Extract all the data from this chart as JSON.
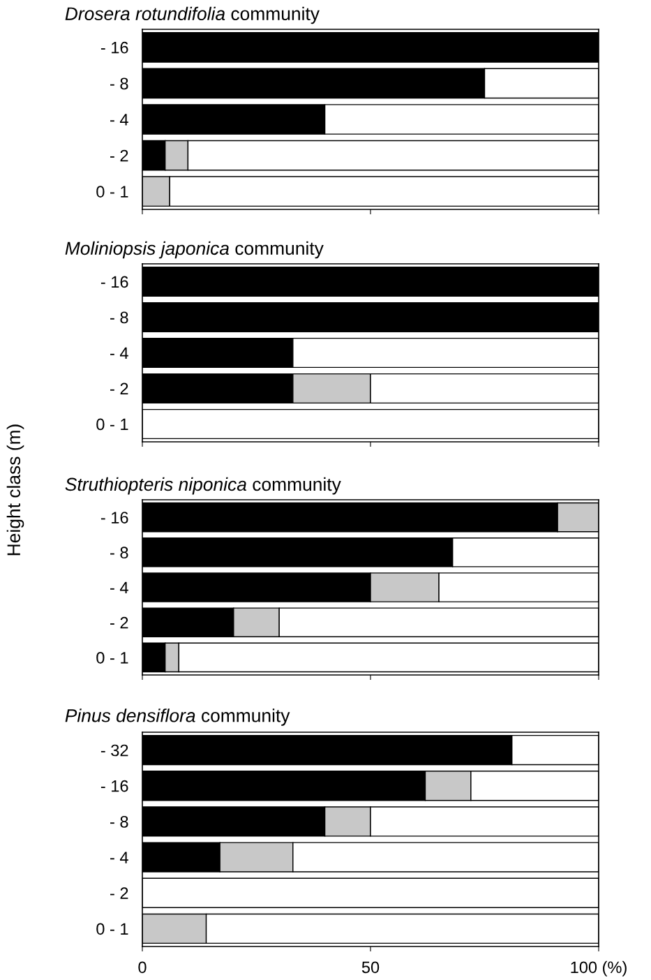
{
  "chart_data": [
    {
      "type": "bar",
      "orientation": "horizontal",
      "stacked": true,
      "title": "Drosera rotundifolia community",
      "categories": [
        "- 16",
        "- 8",
        "- 4",
        "- 2",
        "0 - 1"
      ],
      "series": [
        {
          "color": "#000000",
          "values": [
            100,
            75,
            40,
            5,
            0
          ]
        },
        {
          "color": "#c8c8c8",
          "values": [
            0,
            0,
            0,
            5,
            6
          ]
        },
        {
          "color": "#ffffff",
          "values": [
            0,
            25,
            60,
            90,
            94
          ]
        }
      ],
      "xlim": [
        0,
        100
      ],
      "xticks": [
        {
          "value": 0,
          "label": null
        },
        {
          "value": 50,
          "label": null
        },
        {
          "value": 100,
          "label": null
        }
      ],
      "tick_labels": "y",
      "grid": false,
      "legend": false
    },
    {
      "type": "bar",
      "orientation": "horizontal",
      "stacked": true,
      "title": "Moliniopsis japonica community",
      "ylabel": "Height class (m)",
      "categories": [
        "- 16",
        "- 8",
        "- 4",
        "- 2",
        "0 - 1"
      ],
      "series": [
        {
          "color": "#000000",
          "values": [
            100,
            100,
            33,
            33,
            0
          ]
        },
        {
          "color": "#c8c8c8",
          "values": [
            0,
            0,
            0,
            17,
            0
          ]
        },
        {
          "color": "#ffffff",
          "values": [
            0,
            0,
            67,
            50,
            100
          ]
        }
      ],
      "xlim": [
        0,
        100
      ],
      "xticks": [
        {
          "value": 0,
          "label": null
        },
        {
          "value": 50,
          "label": null
        },
        {
          "value": 100,
          "label": null
        }
      ],
      "tick_labels": "y",
      "grid": false,
      "legend": false
    },
    {
      "type": "bar",
      "orientation": "horizontal",
      "stacked": true,
      "title": "Struthiopteris niponica community",
      "categories": [
        "- 16",
        "- 8",
        "- 4",
        "- 2",
        "0 - 1"
      ],
      "series": [
        {
          "color": "#000000",
          "values": [
            91,
            68,
            50,
            20,
            5
          ]
        },
        {
          "color": "#c8c8c8",
          "values": [
            9,
            0,
            15,
            10,
            3
          ]
        },
        {
          "color": "#ffffff",
          "values": [
            0,
            32,
            35,
            70,
            92
          ]
        }
      ],
      "xlim": [
        0,
        100
      ],
      "xticks": [
        {
          "value": 0,
          "label": null
        },
        {
          "value": 50,
          "label": null
        },
        {
          "value": 100,
          "label": null
        }
      ],
      "tick_labels": "y",
      "grid": false,
      "legend": false
    },
    {
      "type": "bar",
      "orientation": "horizontal",
      "stacked": true,
      "title": "Pinus densiflora community",
      "categories": [
        "- 32",
        "- 16",
        "- 8",
        "- 4",
        "- 2",
        "0 - 1"
      ],
      "series": [
        {
          "color": "#000000",
          "values": [
            81,
            62,
            40,
            17,
            0,
            0
          ]
        },
        {
          "color": "#c8c8c8",
          "values": [
            0,
            10,
            10,
            16,
            0,
            14
          ]
        },
        {
          "color": "#ffffff",
          "values": [
            19,
            28,
            50,
            67,
            100,
            86
          ]
        }
      ],
      "xlim": [
        0,
        100
      ],
      "xticks": [
        0,
        50,
        {
          "value": 100,
          "label": "100 (%)"
        }
      ],
      "grid": false,
      "legend": false
    }
  ]
}
